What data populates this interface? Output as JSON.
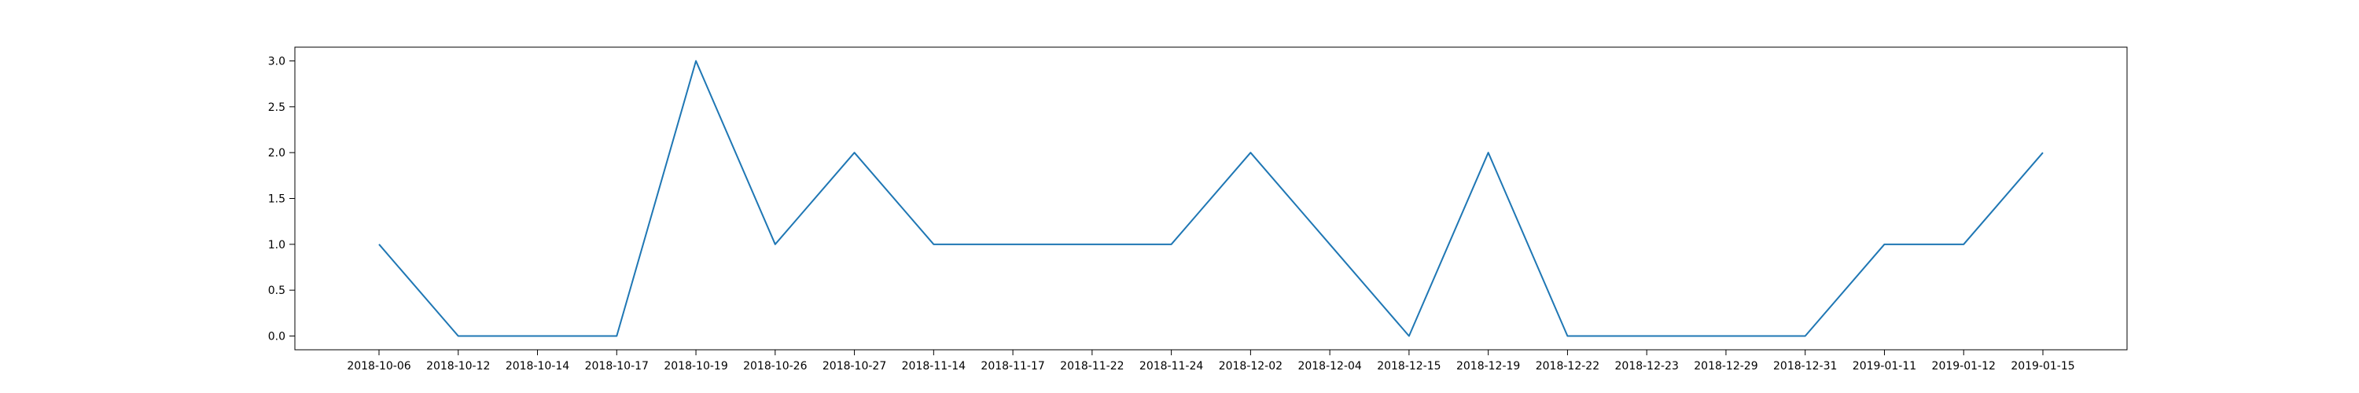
{
  "chart_data": {
    "type": "line",
    "title": "",
    "xlabel": "",
    "ylabel": "",
    "grid": false,
    "legend": false,
    "ylim": [
      -0.15,
      3.15
    ],
    "yticks": [
      0.0,
      0.5,
      1.0,
      1.5,
      2.0,
      2.5,
      3.0
    ],
    "ytick_labels": [
      "0.0",
      "0.5",
      "1.0",
      "1.5",
      "2.0",
      "2.5",
      "3.0"
    ],
    "categories": [
      "2018-10-06",
      "2018-10-12",
      "2018-10-14",
      "2018-10-17",
      "2018-10-19",
      "2018-10-26",
      "2018-10-27",
      "2018-11-14",
      "2018-11-17",
      "2018-11-22",
      "2018-11-24",
      "2018-12-02",
      "2018-12-04",
      "2018-12-15",
      "2018-12-19",
      "2018-12-22",
      "2018-12-23",
      "2018-12-29",
      "2018-12-31",
      "2019-01-11",
      "2019-01-12",
      "2019-01-15"
    ],
    "series": [
      {
        "color": "#1f77b4",
        "values": [
          1,
          0,
          0,
          0,
          3,
          1,
          2,
          1,
          1,
          1,
          1,
          2,
          1,
          0,
          2,
          0,
          0,
          0,
          0,
          1,
          1,
          2
        ]
      }
    ]
  }
}
